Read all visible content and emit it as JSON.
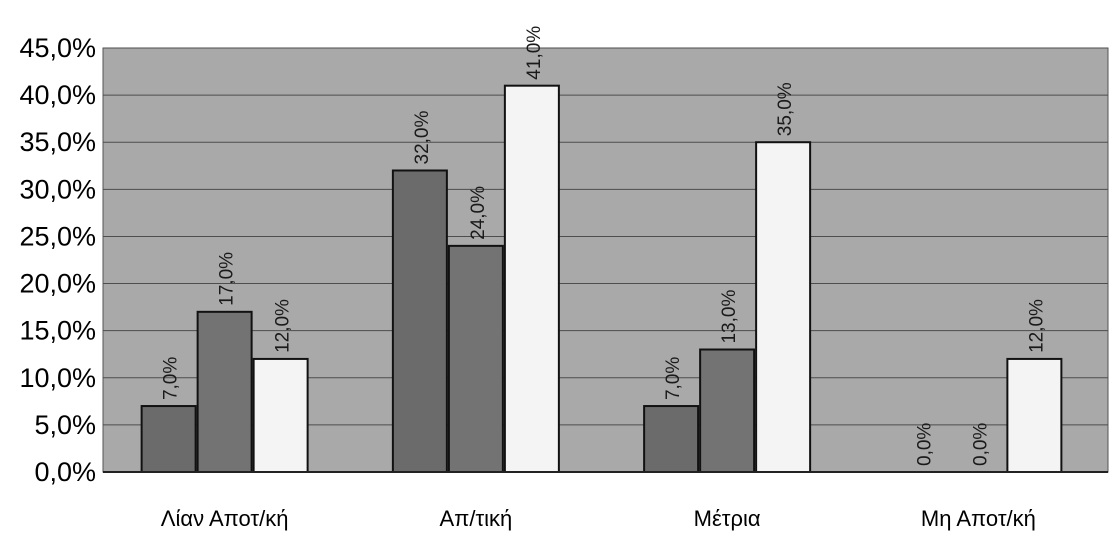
{
  "chart_data": {
    "type": "bar",
    "title": "",
    "xlabel": "",
    "ylabel": "",
    "ylim": [
      0,
      45
    ],
    "ytick_step": 5,
    "ytick_labels": [
      "0,0%",
      "5,0%",
      "10,0%",
      "15,0%",
      "20,0%",
      "25,0%",
      "30,0%",
      "35,0%",
      "40,0%",
      "45,0%"
    ],
    "categories": [
      "Λίαν Αποτ/κή",
      "Απ/τική",
      "Μέτρια",
      "Μη Αποτ/κή"
    ],
    "series": [
      {
        "values": [
          7.0,
          32.0,
          7.0,
          0.0
        ],
        "labels": [
          "7,0%",
          "32,0%",
          "7,0%",
          "0,0%"
        ],
        "color": "#6b6b6b"
      },
      {
        "values": [
          17.0,
          24.0,
          13.0,
          0.0
        ],
        "labels": [
          "17,0%",
          "24,0%",
          "13,0%",
          "0,0%"
        ],
        "color": "#737373"
      },
      {
        "values": [
          12.0,
          41.0,
          35.0,
          12.0
        ],
        "labels": [
          "12,0%",
          "41,0%",
          "35,0%",
          "12,0%"
        ],
        "color": "#f4f4f4"
      }
    ],
    "grid": true,
    "legend": "none",
    "plot_background": "#a9a9a9"
  }
}
